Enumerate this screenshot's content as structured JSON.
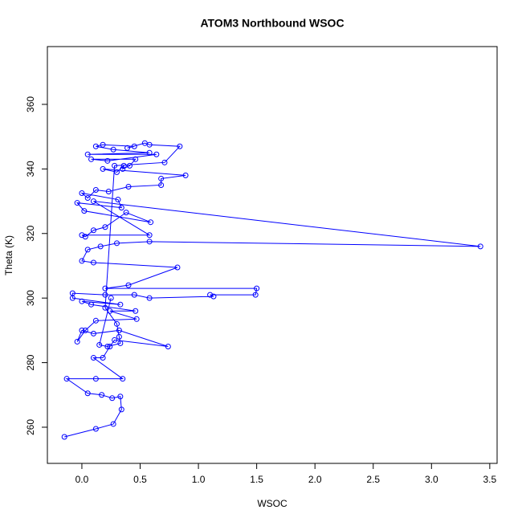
{
  "chart_data": {
    "type": "line",
    "title": "ATOM3 Northbound WSOC",
    "x_label": "WSOC",
    "y_label": "Theta (K)",
    "color": "#0000ff",
    "x": [
      -0.15,
      0.12,
      0.27,
      0.34,
      0.33,
      0.26,
      0.17,
      0.05,
      -0.13,
      0.12,
      0.35,
      0.1,
      0.18,
      0.24,
      0.28,
      0.74,
      0.32,
      0.1,
      0.0,
      -0.04,
      0.03,
      0.12,
      0.47,
      0.24,
      0.46,
      0.08,
      0.0,
      0.33,
      -0.08,
      -0.08,
      0.2,
      0.45,
      0.58,
      1.13,
      1.1,
      1.49,
      1.5,
      0.2,
      0.4,
      0.82,
      0.1,
      0.0,
      0.05,
      0.16,
      0.3,
      0.58,
      3.42,
      0.1,
      0.58,
      0.0,
      0.03,
      0.1,
      0.2,
      0.38,
      0.59,
      0.02,
      -0.04,
      0.34,
      0.31,
      0.0,
      0.05,
      0.12,
      0.23,
      0.4,
      0.68,
      0.68,
      0.89,
      0.18,
      0.3,
      0.36,
      0.35,
      0.41,
      0.46,
      0.08,
      0.22,
      0.64,
      0.05,
      0.58,
      0.27,
      0.12,
      0.18,
      0.45,
      0.39,
      0.54,
      0.58,
      0.84,
      0.71,
      0.28,
      0.2,
      0.3,
      0.32,
      0.33,
      0.22,
      0.15,
      0.25
    ],
    "values": [
      257,
      259.5,
      261,
      265.5,
      269.5,
      269,
      270,
      270.5,
      275,
      275,
      275,
      281.5,
      281.5,
      285,
      287,
      285,
      290,
      289,
      290,
      286.5,
      290,
      293,
      293.5,
      296,
      296,
      298,
      299,
      298,
      300,
      301.5,
      301,
      301,
      300,
      300.5,
      301,
      301,
      303,
      303,
      304,
      309.5,
      311,
      311.5,
      315,
      316,
      317,
      317.5,
      316,
      330,
      319.5,
      319.5,
      319,
      321,
      322,
      326.5,
      323.5,
      327,
      329.5,
      328,
      330.5,
      332.5,
      331,
      333.5,
      333,
      334.5,
      335,
      337,
      338,
      340,
      339,
      341,
      340,
      341,
      343,
      343,
      342.5,
      344.5,
      344.5,
      345,
      346,
      347,
      347.5,
      347,
      346.5,
      348,
      347.5,
      347,
      342,
      341,
      297,
      292,
      288,
      286,
      285,
      285.5,
      300
    ],
    "xlim": [
      -0.296,
      3.563
    ],
    "ylim": [
      248.8,
      377.9
    ],
    "xticks": [
      {
        "value": 0,
        "label": "0.0"
      },
      0.5,
      {
        "value": 1,
        "label": "1.0"
      },
      1.5,
      {
        "value": 2,
        "label": "2.0"
      },
      2.5,
      {
        "value": 3,
        "label": "3.0"
      },
      3.5
    ],
    "yticks": [
      260,
      280,
      300,
      320,
      340,
      360
    ]
  }
}
